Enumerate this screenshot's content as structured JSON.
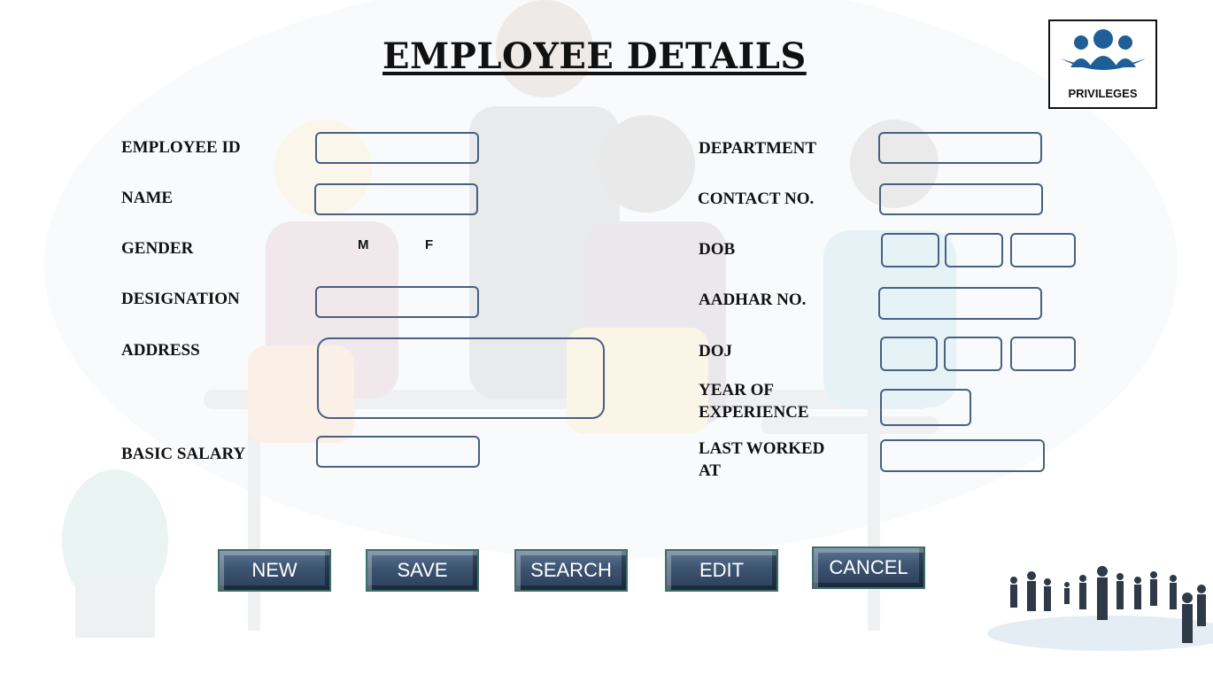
{
  "title": "EMPLOYEE  DETAILS",
  "privileges": {
    "label": "PRIVILEGES",
    "icon": "people-group-icon"
  },
  "left_labels": {
    "employee_id": "EMPLOYEE ID",
    "name": "NAME",
    "gender": "GENDER",
    "designation": "DESIGNATION",
    "address": "ADDRESS",
    "basic_salary": "BASIC SALARY"
  },
  "gender_options": {
    "male": "M",
    "female": "F"
  },
  "right_labels": {
    "department": "DEPARTMENT",
    "contact_no": "CONTACT NO.",
    "dob": "DOB",
    "aadhar_no": "AADHAR NO.",
    "doj": "DOJ",
    "year_of_experience_line1": "YEAR OF",
    "year_of_experience_line2": "EXPERIENCE",
    "last_worked_at_line1": "LAST WORKED",
    "last_worked_at_line2": "AT"
  },
  "buttons": {
    "new": "NEW",
    "save": "SAVE",
    "search": "SEARCH",
    "edit": "EDIT",
    "cancel": "CANCEL"
  },
  "colors": {
    "field_border": "#4a5f82",
    "button_top": "#5d7592",
    "button_bottom": "#2a3f5a",
    "privileges_icon": "#1f5e96"
  }
}
